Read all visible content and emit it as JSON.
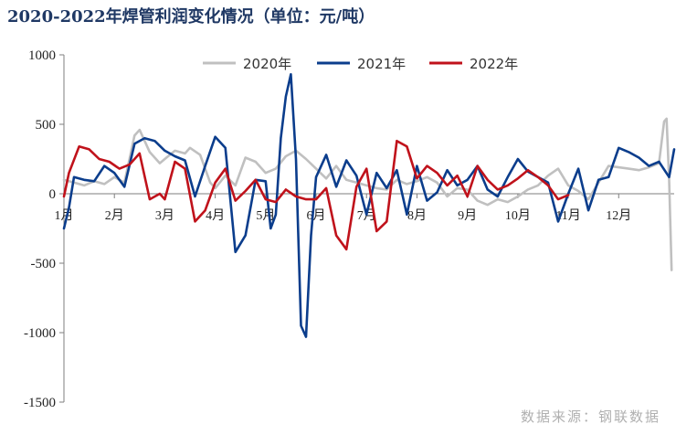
{
  "chart_data": {
    "type": "line",
    "title": "2020-2022年焊管利润变化情况（单位：元/吨）",
    "source": "数据来源：钢联数据",
    "ylim": [
      -1500,
      1000
    ],
    "yticks": [
      1000,
      500,
      0,
      -500,
      -1000,
      -1500
    ],
    "months": [
      "1月",
      "2月",
      "3月",
      "4月",
      "5月",
      "6月",
      "7月",
      "8月",
      "9月",
      "10月",
      "11月",
      "12月"
    ],
    "legend_position": "top-center",
    "grid": false,
    "series": [
      {
        "name": "2020年",
        "color": "#c0c0c0",
        "x": [
          1.0,
          1.2,
          1.4,
          1.6,
          1.8,
          2.0,
          2.2,
          2.4,
          2.5,
          2.7,
          2.9,
          3.0,
          3.2,
          3.4,
          3.5,
          3.7,
          3.9,
          4.0,
          4.2,
          4.4,
          4.6,
          4.8,
          5.0,
          5.2,
          5.4,
          5.6,
          5.8,
          6.0,
          6.2,
          6.4,
          6.6,
          6.8,
          7.0,
          7.2,
          7.4,
          7.6,
          7.8,
          8.0,
          8.2,
          8.4,
          8.6,
          8.8,
          9.0,
          9.2,
          9.4,
          9.6,
          9.8,
          10.0,
          10.2,
          10.4,
          10.6,
          10.8,
          11.0,
          11.2,
          11.4,
          11.6,
          11.8,
          12.0,
          12.2,
          12.4,
          12.6,
          12.8,
          12.9,
          12.95,
          13.0,
          13.05
        ],
        "y": [
          100,
          80,
          60,
          90,
          70,
          120,
          80,
          420,
          460,
          300,
          220,
          250,
          310,
          290,
          330,
          280,
          80,
          40,
          130,
          60,
          260,
          230,
          150,
          180,
          270,
          310,
          250,
          180,
          110,
          200,
          100,
          80,
          60,
          40,
          30,
          100,
          70,
          90,
          120,
          80,
          -20,
          40,
          30,
          -50,
          -80,
          -40,
          -60,
          -20,
          30,
          60,
          130,
          180,
          60,
          20,
          -40,
          80,
          200,
          190,
          180,
          170,
          190,
          220,
          520,
          540,
          100,
          -550
        ]
      },
      {
        "name": "2021年",
        "color": "#0b3d8c",
        "x": [
          1.0,
          1.1,
          1.2,
          1.4,
          1.6,
          1.8,
          2.0,
          2.2,
          2.4,
          2.6,
          2.8,
          3.0,
          3.2,
          3.4,
          3.6,
          3.8,
          4.0,
          4.2,
          4.4,
          4.6,
          4.8,
          5.0,
          5.1,
          5.2,
          5.3,
          5.4,
          5.5,
          5.6,
          5.7,
          5.8,
          5.9,
          6.0,
          6.2,
          6.4,
          6.6,
          6.8,
          7.0,
          7.2,
          7.4,
          7.6,
          7.8,
          8.0,
          8.2,
          8.4,
          8.6,
          8.8,
          9.0,
          9.2,
          9.4,
          9.6,
          9.8,
          10.0,
          10.2,
          10.4,
          10.6,
          10.8,
          11.0,
          11.2,
          11.4,
          11.6,
          11.8,
          12.0,
          12.2,
          12.4,
          12.6,
          12.8,
          13.0,
          13.1
        ],
        "y": [
          -250,
          -100,
          120,
          100,
          90,
          200,
          150,
          50,
          360,
          400,
          380,
          310,
          270,
          240,
          -20,
          200,
          410,
          330,
          -420,
          -300,
          100,
          90,
          -250,
          -150,
          400,
          700,
          860,
          250,
          -950,
          -1030,
          -300,
          120,
          280,
          50,
          240,
          130,
          -150,
          150,
          40,
          170,
          -150,
          200,
          -50,
          10,
          170,
          60,
          100,
          200,
          30,
          -20,
          120,
          250,
          160,
          120,
          80,
          -200,
          0,
          180,
          -120,
          100,
          120,
          330,
          300,
          260,
          200,
          230,
          120,
          320
        ]
      },
      {
        "name": "2022年",
        "color": "#c0121b",
        "x": [
          1.0,
          1.1,
          1.3,
          1.5,
          1.7,
          1.9,
          2.1,
          2.3,
          2.5,
          2.7,
          2.9,
          3.0,
          3.2,
          3.4,
          3.6,
          3.8,
          4.0,
          4.2,
          4.4,
          4.6,
          4.8,
          5.0,
          5.2,
          5.4,
          5.6,
          5.8,
          6.0,
          6.2,
          6.4,
          6.6,
          6.8,
          7.0,
          7.2,
          7.4,
          7.6,
          7.8,
          8.0,
          8.2,
          8.4,
          8.6,
          8.8,
          9.0,
          9.2,
          9.4,
          9.6,
          9.8,
          10.0,
          10.2,
          10.4,
          10.6,
          10.8,
          11.0
        ],
        "y": [
          -20,
          150,
          340,
          320,
          250,
          230,
          180,
          210,
          290,
          -40,
          0,
          -40,
          230,
          180,
          -200,
          -120,
          80,
          180,
          -50,
          20,
          100,
          -40,
          -60,
          30,
          -20,
          -40,
          -40,
          40,
          -300,
          -400,
          50,
          180,
          -270,
          -200,
          380,
          340,
          110,
          200,
          150,
          60,
          130,
          -20,
          200,
          100,
          30,
          60,
          110,
          170,
          120,
          60,
          -40,
          -10
        ]
      }
    ]
  }
}
